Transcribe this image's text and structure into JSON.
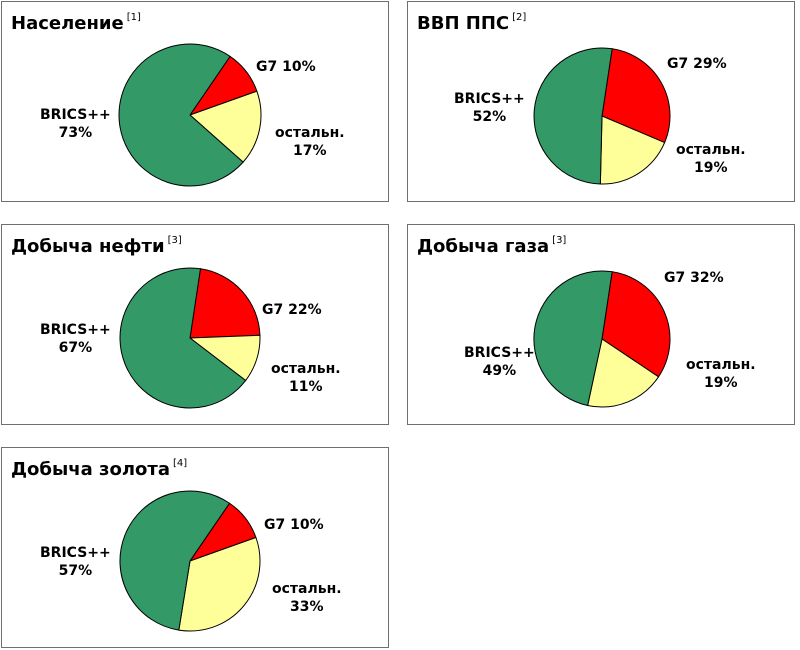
{
  "chart_data": [
    {
      "type": "pie",
      "title": "Население",
      "footnote": "[1]",
      "slices": [
        {
          "name": "BRICS++",
          "value": 73,
          "label": "73%",
          "color": "#339966"
        },
        {
          "name": "G7",
          "value": 10,
          "label": "10%",
          "color": "#ff0000"
        },
        {
          "name": "остальн.",
          "value": 17,
          "label": "17%",
          "color": "#ffff99"
        }
      ]
    },
    {
      "type": "pie",
      "title": "ВВП ППС",
      "footnote": "[2]",
      "slices": [
        {
          "name": "BRICS++",
          "value": 52,
          "label": "52%",
          "color": "#339966"
        },
        {
          "name": "G7",
          "value": 29,
          "label": "29%",
          "color": "#ff0000"
        },
        {
          "name": "остальн.",
          "value": 19,
          "label": "19%",
          "color": "#ffff99"
        }
      ]
    },
    {
      "type": "pie",
      "title": "Добыча нефти",
      "footnote": "[3]",
      "slices": [
        {
          "name": "BRICS++",
          "value": 67,
          "label": "67%",
          "color": "#339966"
        },
        {
          "name": "G7",
          "value": 22,
          "label": "22%",
          "color": "#ff0000"
        },
        {
          "name": "остальн.",
          "value": 11,
          "label": "11%",
          "color": "#ffff99"
        }
      ]
    },
    {
      "type": "pie",
      "title": "Добыча газа",
      "footnote": "[3]",
      "slices": [
        {
          "name": "BRICS++",
          "value": 49,
          "label": "49%",
          "color": "#339966"
        },
        {
          "name": "G7",
          "value": 32,
          "label": "32%",
          "color": "#ff0000"
        },
        {
          "name": "остальн.",
          "value": 19,
          "label": "19%",
          "color": "#ffff99"
        }
      ]
    },
    {
      "type": "pie",
      "title": "Добыча золота",
      "footnote": "[4]",
      "slices": [
        {
          "name": "BRICS++",
          "value": 57,
          "label": "57%",
          "color": "#339966"
        },
        {
          "name": "G7",
          "value": 10,
          "label": "10%",
          "color": "#ff0000"
        },
        {
          "name": "остальн.",
          "value": 33,
          "label": "33%",
          "color": "#ffff99"
        }
      ]
    }
  ]
}
